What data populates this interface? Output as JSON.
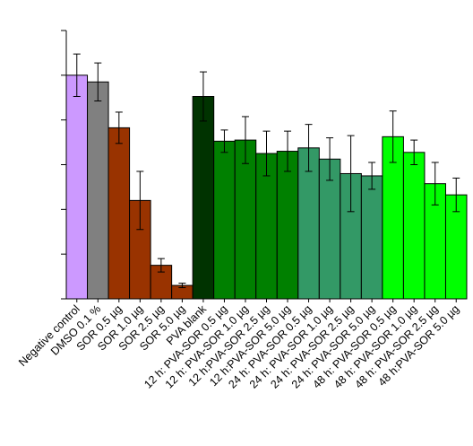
{
  "chart_data": {
    "type": "bar",
    "title": "",
    "xlabel": "",
    "ylabel": "",
    "ylim": [
      0,
      120
    ],
    "y_ticks": [
      0,
      20,
      40,
      60,
      80,
      100,
      120
    ],
    "y_tick_labels_shown": false,
    "grid": false,
    "legend": "none",
    "error_bars": true,
    "categories": [
      "Negative control",
      "DMSO 0.1 %",
      "SOR 0.5 µg",
      "SOR 1.0 µg",
      "SOR 2.5 µg",
      "SOR 5.0 µg",
      "PVA blank",
      "12 h: PVA-SOR 0.5 µg",
      "12 h: PVA-SOR 1.0 µg",
      "12 h:PVA-SOR 2.5 µg",
      "12 h:PVA-SOR 5.0 µg",
      "24 h: PVA-SOR 0.5 µg",
      "24 h: PVA-SOR 1.0 µg",
      "24 h: PVA-SOR 2.5 µg",
      "24 h: PVA-SOR 5.0 µg",
      "48 h: PVA-SOR 0.5 µg",
      "48 h: PVA-SOR 1.0 µg",
      "48 h: PVA-SOR 2.5 µg",
      "48 h:PVA-SOR 5.0 µg"
    ],
    "values": [
      100,
      97,
      76.5,
      44,
      15,
      6,
      90.5,
      70.5,
      71,
      65,
      66,
      67.5,
      62.5,
      56,
      55,
      72.5,
      65.5,
      51.5,
      46.5
    ],
    "errors": [
      9.5,
      8.5,
      7,
      13,
      3,
      1,
      11,
      5,
      10.5,
      10,
      9,
      10.5,
      9.5,
      17,
      6,
      11.5,
      5.5,
      9.5,
      7.5
    ],
    "colors": [
      "#cc99ff",
      "#808080",
      "#993300",
      "#993300",
      "#993300",
      "#993300",
      "#003300",
      "#008000",
      "#008000",
      "#008000",
      "#008000",
      "#339966",
      "#339966",
      "#339966",
      "#339966",
      "#00ff00",
      "#00ff00",
      "#00ff00",
      "#00ff00"
    ]
  }
}
